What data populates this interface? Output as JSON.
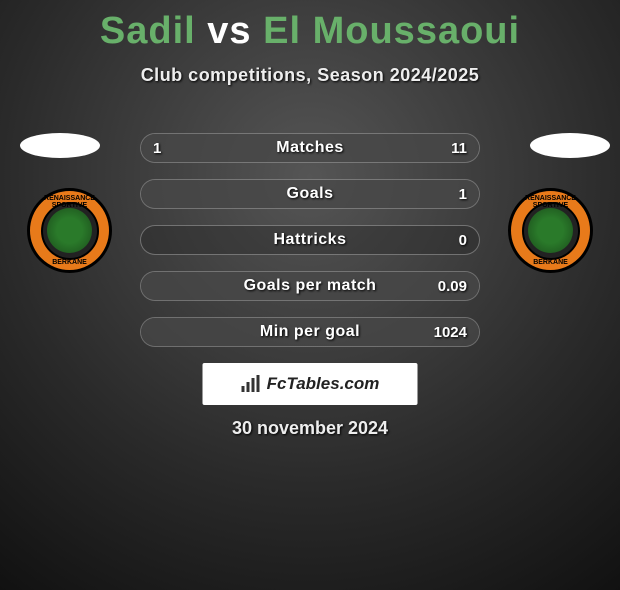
{
  "title": {
    "p1": "Sadil",
    "vs": "vs",
    "p2": "El Moussaoui"
  },
  "subtitle": "Club competitions, Season 2024/2025",
  "crest": {
    "ring_top": "RENAISSANCE SPORTIVE",
    "ring_bottom": "BERKANE",
    "bg_color": "#e87a1a"
  },
  "bars": [
    {
      "label": "Matches",
      "left": "1",
      "right": "11",
      "fill_left_pct": 8,
      "fill_right_pct": 92
    },
    {
      "label": "Goals",
      "left": "",
      "right": "1",
      "fill_left_pct": 0,
      "fill_right_pct": 100
    },
    {
      "label": "Hattricks",
      "left": "",
      "right": "0",
      "fill_left_pct": 0,
      "fill_right_pct": 0
    },
    {
      "label": "Goals per match",
      "left": "",
      "right": "0.09",
      "fill_left_pct": 0,
      "fill_right_pct": 100
    },
    {
      "label": "Min per goal",
      "left": "",
      "right": "1024",
      "fill_left_pct": 0,
      "fill_right_pct": 100
    }
  ],
  "logo_text": "FcTables.com",
  "date": "30 november 2024",
  "colors": {
    "accent_green": "#68b06a",
    "bar_fill": "rgba(80,80,80,0.6)",
    "bar_border": "rgba(255,255,255,0.3)"
  }
}
